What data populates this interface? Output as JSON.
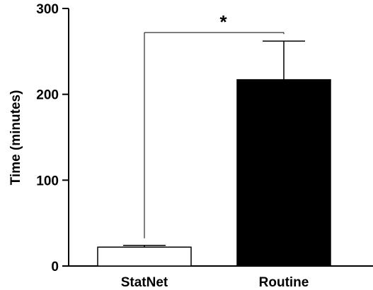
{
  "chart_data": {
    "type": "bar",
    "categories": [
      "StatNet",
      "Routine"
    ],
    "values": [
      22,
      217
    ],
    "error_upper": [
      24,
      262
    ],
    "bar_colors": [
      "#ffffff",
      "#000000"
    ],
    "ylabel": "Time (minutes)",
    "xlabel": "",
    "ylim": [
      0,
      300
    ],
    "yticks": [
      0,
      100,
      200,
      300
    ],
    "significance": {
      "label": "*",
      "between": [
        0,
        1
      ],
      "y": 272
    },
    "grid": false,
    "legend": "none"
  }
}
